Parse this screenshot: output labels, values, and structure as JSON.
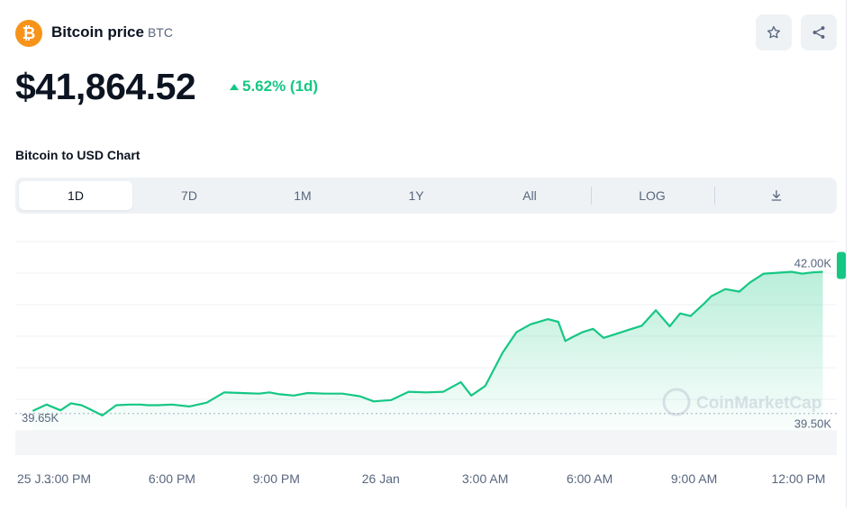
{
  "header": {
    "logo_glyph": "₿",
    "coin_name": "Bitcoin price",
    "coin_symbol": "BTC",
    "price": "$41,864.52",
    "change": "5.62% (1d)",
    "change_color": "#16c784",
    "brand_color": "#f7931a",
    "watchlist_icon": "star-icon",
    "share_icon": "share-icon"
  },
  "chart_section": {
    "title": "Bitcoin to USD Chart",
    "tabs": [
      {
        "label": "1D",
        "active": true
      },
      {
        "label": "7D",
        "active": false
      },
      {
        "label": "1M",
        "active": false
      },
      {
        "label": "1Y",
        "active": false
      },
      {
        "label": "All",
        "active": false
      },
      {
        "label": "LOG",
        "active": false
      }
    ],
    "download_icon": "download-icon"
  },
  "chart_data": {
    "type": "area",
    "y_unit": "USD",
    "ylim": [
      39380,
      42330
    ],
    "ref_low_label": "39.65K",
    "ref_low_value": 39650,
    "high_tag": "42.00K",
    "high_value": 42000,
    "low_tag": "39.50K",
    "low_value": 39500,
    "watermark": "CoinMarketCap",
    "line_color": "#16c784",
    "x_ticks": [
      "25 J...",
      "3:00 PM",
      "6:00 PM",
      "9:00 PM",
      "26 Jan",
      "3:00 AM",
      "6:00 AM",
      "9:00 AM",
      "12:00 PM"
    ],
    "x_hours": [
      0,
      1.5,
      4.5,
      7.5,
      10.5,
      13.5,
      16.5,
      19.5,
      22.5
    ],
    "series": [
      {
        "hours": [
          0.5,
          0.9,
          1.3,
          1.6,
          1.9,
          2.1,
          2.5,
          2.9,
          3.3,
          3.6,
          3.8,
          4.1,
          4.5,
          5.0,
          5.5,
          6.0,
          6.5,
          7.0,
          7.3,
          7.6,
          8.0,
          8.4,
          8.9,
          9.4,
          9.9,
          10.3,
          10.8,
          11.3,
          11.8,
          12.3,
          12.8,
          13.1,
          13.5,
          14.0,
          14.4,
          14.8,
          15.3,
          15.6,
          15.8,
          16.0,
          16.3,
          16.6,
          16.9,
          17.2,
          17.6,
          18.0,
          18.4,
          18.8,
          19.1,
          19.4,
          19.8,
          20.0,
          20.4,
          20.8,
          21.1,
          21.5,
          21.8,
          22.3,
          22.6,
          22.9,
          23.2
        ],
        "values": [
          39690,
          39790,
          39700,
          39810,
          39780,
          39730,
          39620,
          39780,
          39790,
          39790,
          39780,
          39780,
          39790,
          39760,
          39820,
          39980,
          39970,
          39960,
          39980,
          39950,
          39930,
          39970,
          39960,
          39960,
          39920,
          39840,
          39860,
          39990,
          39980,
          39990,
          40140,
          39930,
          40080,
          40600,
          40920,
          41040,
          41120,
          41080,
          40780,
          40840,
          40920,
          40970,
          40830,
          40880,
          40950,
          41020,
          41260,
          41010,
          41210,
          41170,
          41370,
          41480,
          41590,
          41550,
          41690,
          41830,
          41840,
          41860,
          41830,
          41850,
          41860
        ]
      }
    ]
  }
}
